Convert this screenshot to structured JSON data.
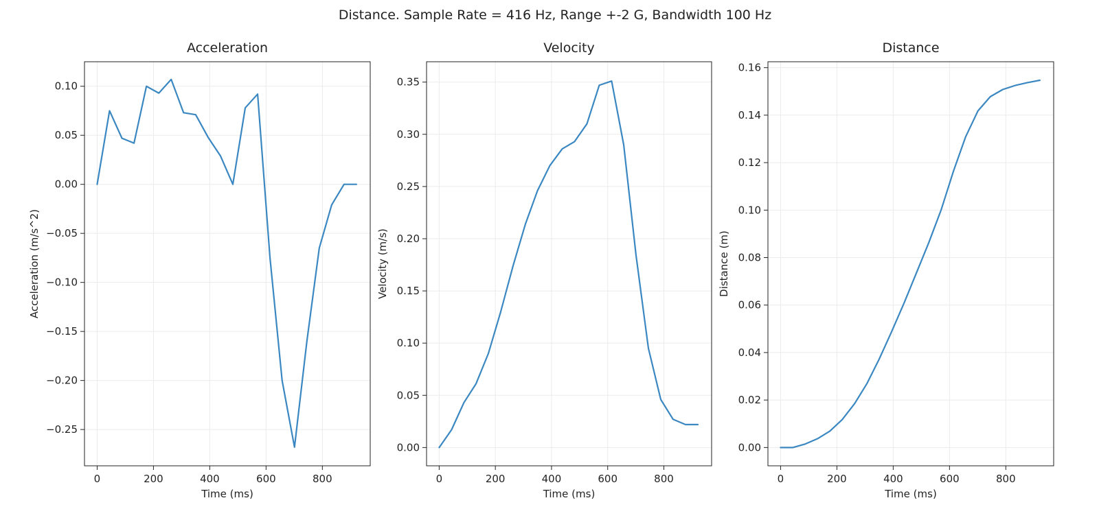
{
  "figure": {
    "suptitle": "Distance. Sample Rate = 416 Hz, Range +-2 G, Bandwidth 100 Hz"
  },
  "colors": {
    "series": "#3a87c1",
    "grid": "#ebebeb",
    "frame": "#222222"
  },
  "chart_data": [
    {
      "type": "line",
      "title": "Acceleration",
      "xlabel": "Time (ms)",
      "ylabel": "Acceleration (m/s^2)",
      "xlim": [
        -45,
        970
      ],
      "ylim": [
        -0.287,
        0.125
      ],
      "xticks": [
        0,
        200,
        400,
        600,
        800
      ],
      "xtick_labels": [
        "0",
        "200",
        "400",
        "600",
        "800"
      ],
      "yticks": [
        -0.25,
        -0.2,
        -0.15,
        -0.1,
        -0.05,
        0.0,
        0.05,
        0.1
      ],
      "ytick_labels": [
        "−0.25",
        "−0.20",
        "−0.15",
        "−0.10",
        "−0.05",
        "0.00",
        "0.05",
        "0.10"
      ],
      "grid": true,
      "series": [
        {
          "x": [
            0,
            44,
            88,
            131,
            175,
            219,
            263,
            307,
            350,
            394,
            438,
            482,
            526,
            570,
            614,
            657,
            701,
            745,
            789,
            833,
            877,
            921
          ],
          "y": [
            0.0,
            0.075,
            0.047,
            0.042,
            0.1,
            0.093,
            0.107,
            0.073,
            0.071,
            0.048,
            0.029,
            0.0,
            0.078,
            0.092,
            -0.075,
            -0.2,
            -0.268,
            -0.16,
            -0.065,
            -0.021,
            0.0,
            0.0
          ]
        }
      ]
    },
    {
      "type": "line",
      "title": "Velocity",
      "xlabel": "Time (ms)",
      "ylabel": "Velocity (m/s)",
      "xlim": [
        -45,
        970
      ],
      "ylim": [
        -0.0175,
        0.3695
      ],
      "xticks": [
        0,
        200,
        400,
        600,
        800
      ],
      "xtick_labels": [
        "0",
        "200",
        "400",
        "600",
        "800"
      ],
      "yticks": [
        0.0,
        0.05,
        0.1,
        0.15,
        0.2,
        0.25,
        0.3,
        0.35
      ],
      "ytick_labels": [
        "0.00",
        "0.05",
        "0.10",
        "0.15",
        "0.20",
        "0.25",
        "0.30",
        "0.35"
      ],
      "grid": true,
      "series": [
        {
          "x": [
            0,
            44,
            88,
            131,
            175,
            219,
            263,
            307,
            350,
            394,
            438,
            482,
            526,
            570,
            614,
            657,
            701,
            745,
            789,
            833,
            877,
            921
          ],
          "y": [
            0.0,
            0.017,
            0.043,
            0.061,
            0.09,
            0.13,
            0.174,
            0.214,
            0.246,
            0.27,
            0.286,
            0.293,
            0.31,
            0.347,
            0.351,
            0.29,
            0.184,
            0.095,
            0.046,
            0.027,
            0.022,
            0.022
          ]
        }
      ]
    },
    {
      "type": "line",
      "title": "Distance",
      "xlabel": "Time (ms)",
      "ylabel": "Distance (m)",
      "xlim": [
        -45,
        970
      ],
      "ylim": [
        -0.0077,
        0.1625
      ],
      "xticks": [
        0,
        200,
        400,
        600,
        800
      ],
      "xtick_labels": [
        "0",
        "200",
        "400",
        "600",
        "800"
      ],
      "yticks": [
        0.0,
        0.02,
        0.04,
        0.06,
        0.08,
        0.1,
        0.12,
        0.14,
        0.16
      ],
      "ytick_labels": [
        "0.00",
        "0.02",
        "0.04",
        "0.06",
        "0.08",
        "0.10",
        "0.12",
        "0.14",
        "0.16"
      ],
      "grid": true,
      "series": [
        {
          "x": [
            0,
            44,
            88,
            131,
            175,
            219,
            263,
            307,
            350,
            394,
            438,
            482,
            526,
            570,
            614,
            657,
            701,
            745,
            789,
            833,
            877,
            921
          ],
          "y": [
            0.0,
            0.0,
            0.0015,
            0.0037,
            0.0069,
            0.0118,
            0.0185,
            0.027,
            0.0372,
            0.0487,
            0.0607,
            0.0734,
            0.0862,
            0.1,
            0.1164,
            0.1308,
            0.1418,
            0.1478,
            0.1508,
            0.1525,
            0.1537,
            0.1547
          ]
        }
      ]
    }
  ]
}
